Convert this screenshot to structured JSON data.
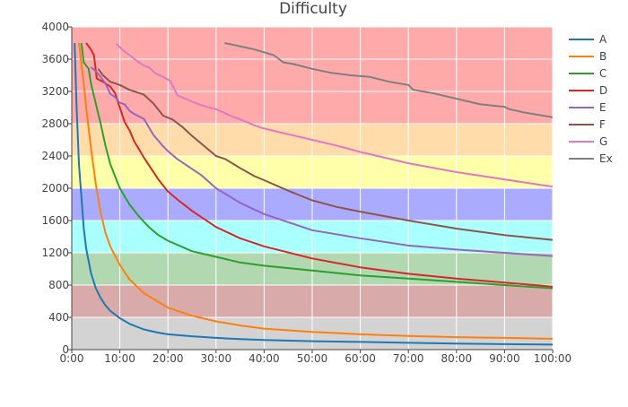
{
  "chart_data": {
    "type": "line",
    "title": "Difficulty",
    "xlabel": "",
    "ylabel": "",
    "x_unit": "minutes",
    "xlim": [
      0,
      100
    ],
    "ylim": [
      0,
      4000
    ],
    "x_ticks": [
      0,
      10,
      20,
      30,
      40,
      50,
      60,
      70,
      80,
      90,
      100
    ],
    "x_tick_labels": [
      "0:00",
      "10:00",
      "20:00",
      "30:00",
      "40:00",
      "50:00",
      "60:00",
      "70:00",
      "80:00",
      "90:00",
      "100:00"
    ],
    "y_ticks": [
      0,
      400,
      800,
      1200,
      1600,
      2000,
      2400,
      2800,
      3200,
      3600,
      4000
    ],
    "y_tick_labels": [
      "0",
      "400",
      "800",
      "1200",
      "1600",
      "2000",
      "2400",
      "2800",
      "3200",
      "3600",
      "4000"
    ],
    "grid": true,
    "legend_position": "right",
    "bands": [
      {
        "from": 0,
        "to": 400,
        "color": "#d3d3d3"
      },
      {
        "from": 400,
        "to": 800,
        "color": "#d8aaaa"
      },
      {
        "from": 800,
        "to": 1200,
        "color": "#b2d8b2"
      },
      {
        "from": 1200,
        "to": 1600,
        "color": "#aaffff"
      },
      {
        "from": 1600,
        "to": 2000,
        "color": "#aaaaff"
      },
      {
        "from": 2000,
        "to": 2400,
        "color": "#ffffaa"
      },
      {
        "from": 2400,
        "to": 2800,
        "color": "#ffdcaa"
      },
      {
        "from": 2800,
        "to": 4000,
        "color": "#ffaaaa"
      }
    ],
    "series": [
      {
        "name": "A",
        "color": "#1f77b4",
        "x": [
          0.6,
          1,
          1.5,
          2,
          2.5,
          3,
          4,
          5,
          6,
          7,
          8,
          10,
          12,
          15,
          18,
          20,
          25,
          30,
          35,
          40,
          50,
          60,
          70,
          80,
          90,
          100
        ],
        "y": [
          3800,
          3000,
          2300,
          1900,
          1500,
          1250,
          950,
          760,
          640,
          550,
          480,
          390,
          320,
          250,
          210,
          190,
          165,
          145,
          130,
          120,
          105,
          95,
          85,
          75,
          68,
          62
        ]
      },
      {
        "name": "B",
        "color": "#ff7f0e",
        "x": [
          1.5,
          2,
          2.5,
          3,
          4,
          5,
          6,
          7,
          8,
          10,
          12,
          15,
          20,
          25,
          30,
          35,
          40,
          50,
          60,
          70,
          80,
          90,
          100
        ],
        "y": [
          3800,
          3550,
          3300,
          3000,
          2500,
          2050,
          1700,
          1450,
          1280,
          1050,
          870,
          700,
          520,
          420,
          350,
          300,
          260,
          220,
          190,
          170,
          155,
          145,
          135
        ]
      },
      {
        "name": "C",
        "color": "#2ca02c",
        "x": [
          2.0,
          2.5,
          3.5,
          4,
          5,
          6,
          7,
          8,
          9,
          10,
          12,
          14,
          16,
          18,
          20,
          25,
          30,
          35,
          40,
          50,
          60,
          70,
          80,
          90,
          100
        ],
        "y": [
          3800,
          3560,
          3480,
          3300,
          3050,
          2800,
          2530,
          2300,
          2150,
          2000,
          1800,
          1650,
          1520,
          1420,
          1350,
          1220,
          1150,
          1080,
          1040,
          980,
          920,
          880,
          840,
          800,
          760
        ]
      },
      {
        "name": "D",
        "color": "#d62728",
        "x": [
          3.0,
          4.0,
          4.6,
          5.2,
          6.5,
          8,
          9,
          10,
          11,
          12,
          13,
          15,
          18,
          20,
          22,
          25,
          30,
          35,
          40,
          50,
          60,
          70,
          80,
          90,
          100
        ],
        "y": [
          3800,
          3720,
          3650,
          3360,
          3320,
          3260,
          3180,
          3000,
          2820,
          2720,
          2580,
          2380,
          2110,
          1960,
          1860,
          1720,
          1520,
          1380,
          1280,
          1130,
          1020,
          940,
          880,
          830,
          780
        ]
      },
      {
        "name": "E",
        "color": "#9467bd",
        "x": [
          4,
          5,
          6,
          7,
          8,
          9,
          10,
          11,
          12,
          13,
          14,
          15,
          17,
          19,
          20,
          22,
          25,
          27,
          30,
          35,
          40,
          50,
          60,
          70,
          80,
          90,
          100
        ],
        "y": [
          3500,
          3450,
          3380,
          3300,
          3170,
          3130,
          3060,
          3040,
          2960,
          2920,
          2890,
          2860,
          2660,
          2520,
          2460,
          2360,
          2240,
          2160,
          2000,
          1820,
          1680,
          1480,
          1380,
          1290,
          1240,
          1200,
          1160
        ]
      },
      {
        "name": "F",
        "color": "#8c564b",
        "x": [
          5.5,
          6.5,
          8,
          10,
          12,
          14,
          15,
          17,
          19,
          21,
          23,
          25,
          28,
          30,
          32,
          35,
          38,
          40,
          45,
          50,
          55,
          60,
          70,
          80,
          90,
          100
        ],
        "y": [
          3480,
          3400,
          3320,
          3280,
          3220,
          3180,
          3160,
          3050,
          2900,
          2850,
          2760,
          2650,
          2500,
          2400,
          2360,
          2250,
          2150,
          2100,
          1970,
          1850,
          1770,
          1710,
          1600,
          1500,
          1420,
          1360
        ]
      },
      {
        "name": "G",
        "color": "#e377c2",
        "x": [
          9.3,
          10.5,
          12,
          13.5,
          15,
          16,
          17.5,
          19,
          20.5,
          22,
          24,
          26,
          28,
          30,
          33,
          36,
          38,
          40,
          45,
          50,
          55,
          60,
          70,
          80,
          90,
          100
        ],
        "y": [
          3790,
          3720,
          3650,
          3580,
          3520,
          3500,
          3420,
          3380,
          3330,
          3150,
          3100,
          3050,
          3010,
          2980,
          2900,
          2830,
          2780,
          2740,
          2670,
          2600,
          2530,
          2450,
          2310,
          2200,
          2110,
          2020
        ]
      },
      {
        "name": "Ex",
        "color": "#7f7f7f",
        "x": [
          31.8,
          35,
          38,
          42,
          44,
          46,
          50,
          54,
          58,
          62,
          66,
          70,
          71,
          75,
          80,
          85,
          90,
          91,
          94,
          98,
          100
        ],
        "y": [
          3800,
          3760,
          3720,
          3650,
          3560,
          3540,
          3480,
          3430,
          3400,
          3380,
          3320,
          3280,
          3220,
          3180,
          3110,
          3040,
          3010,
          2980,
          2940,
          2900,
          2880
        ]
      }
    ]
  }
}
